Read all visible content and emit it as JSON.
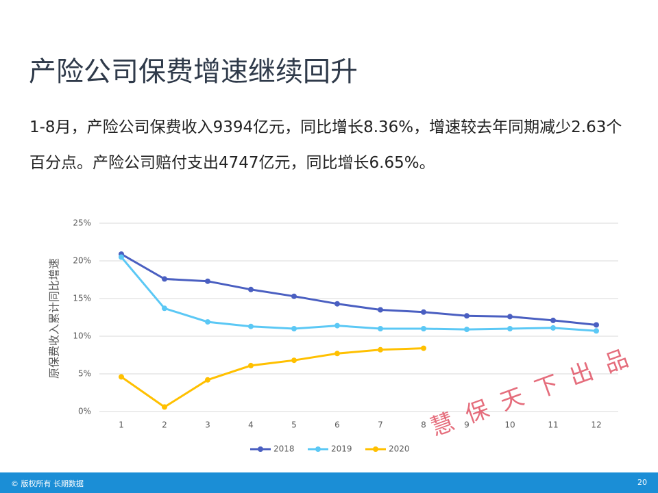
{
  "slide": {
    "title": "产险公司保费增速继续回升",
    "body": "1-8月，产险公司保费收入9394亿元，同比增长8.36%，增速较去年同期减少2.63个百分点。产险公司赔付支出4747亿元，同比增长6.65%。",
    "watermark": "慧保天下出品",
    "footer": {
      "copyright": "© 版权所有 长期数据",
      "page": "20"
    }
  },
  "chart_data": {
    "type": "line",
    "y_label": "原保费收入累计同比增速",
    "categories": [
      "1",
      "2",
      "3",
      "4",
      "5",
      "6",
      "7",
      "8",
      "9",
      "10",
      "11",
      "12"
    ],
    "series": [
      {
        "name": "2018",
        "color": "#4a5fc1",
        "values": [
          20.9,
          17.6,
          17.3,
          16.2,
          15.3,
          14.3,
          13.5,
          13.2,
          12.7,
          12.6,
          12.1,
          11.5
        ]
      },
      {
        "name": "2019",
        "color": "#5bc8f5",
        "values": [
          20.5,
          13.7,
          11.9,
          11.3,
          11.0,
          11.4,
          11.0,
          11.0,
          10.9,
          11.0,
          11.1,
          10.7
        ]
      },
      {
        "name": "2020",
        "color": "#ffc000",
        "values": [
          4.6,
          0.6,
          4.2,
          6.1,
          6.8,
          7.7,
          8.2,
          8.4,
          null,
          null,
          null,
          null
        ]
      }
    ],
    "ylim": [
      0,
      25
    ],
    "yticks": [
      {
        "value": 0,
        "label": "0%"
      },
      {
        "value": 5,
        "label": "5%"
      },
      {
        "value": 10,
        "label": "10%"
      },
      {
        "value": 15,
        "label": "15%"
      },
      {
        "value": 20,
        "label": "20%"
      },
      {
        "value": 25,
        "label": "25%"
      }
    ],
    "grid": true,
    "legend": "bottom"
  }
}
